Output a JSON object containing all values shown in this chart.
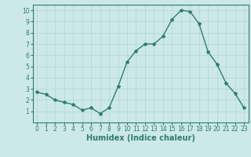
{
  "x": [
    0,
    1,
    2,
    3,
    4,
    5,
    6,
    7,
    8,
    9,
    10,
    11,
    12,
    13,
    14,
    15,
    16,
    17,
    18,
    19,
    20,
    21,
    22,
    23
  ],
  "y": [
    2.7,
    2.5,
    2.0,
    1.8,
    1.6,
    1.1,
    1.3,
    0.8,
    1.3,
    3.2,
    5.4,
    6.4,
    7.0,
    7.0,
    7.7,
    9.2,
    10.0,
    9.9,
    8.8,
    6.3,
    5.2,
    3.5,
    2.6,
    1.3
  ],
  "line_color": "#2e7d6e",
  "marker": "*",
  "bg_color": "#cce8e8",
  "grid_color": "#b8d8d8",
  "xlabel": "Humidex (Indice chaleur)",
  "xlim": [
    -0.5,
    23.5
  ],
  "ylim": [
    0,
    10.5
  ],
  "yticks": [
    1,
    2,
    3,
    4,
    5,
    6,
    7,
    8,
    9,
    10
  ],
  "xticks": [
    0,
    1,
    2,
    3,
    4,
    5,
    6,
    7,
    8,
    9,
    10,
    11,
    12,
    13,
    14,
    15,
    16,
    17,
    18,
    19,
    20,
    21,
    22,
    23
  ],
  "tick_fontsize": 5.5,
  "label_fontsize": 7,
  "line_width": 1.0,
  "marker_size": 3
}
